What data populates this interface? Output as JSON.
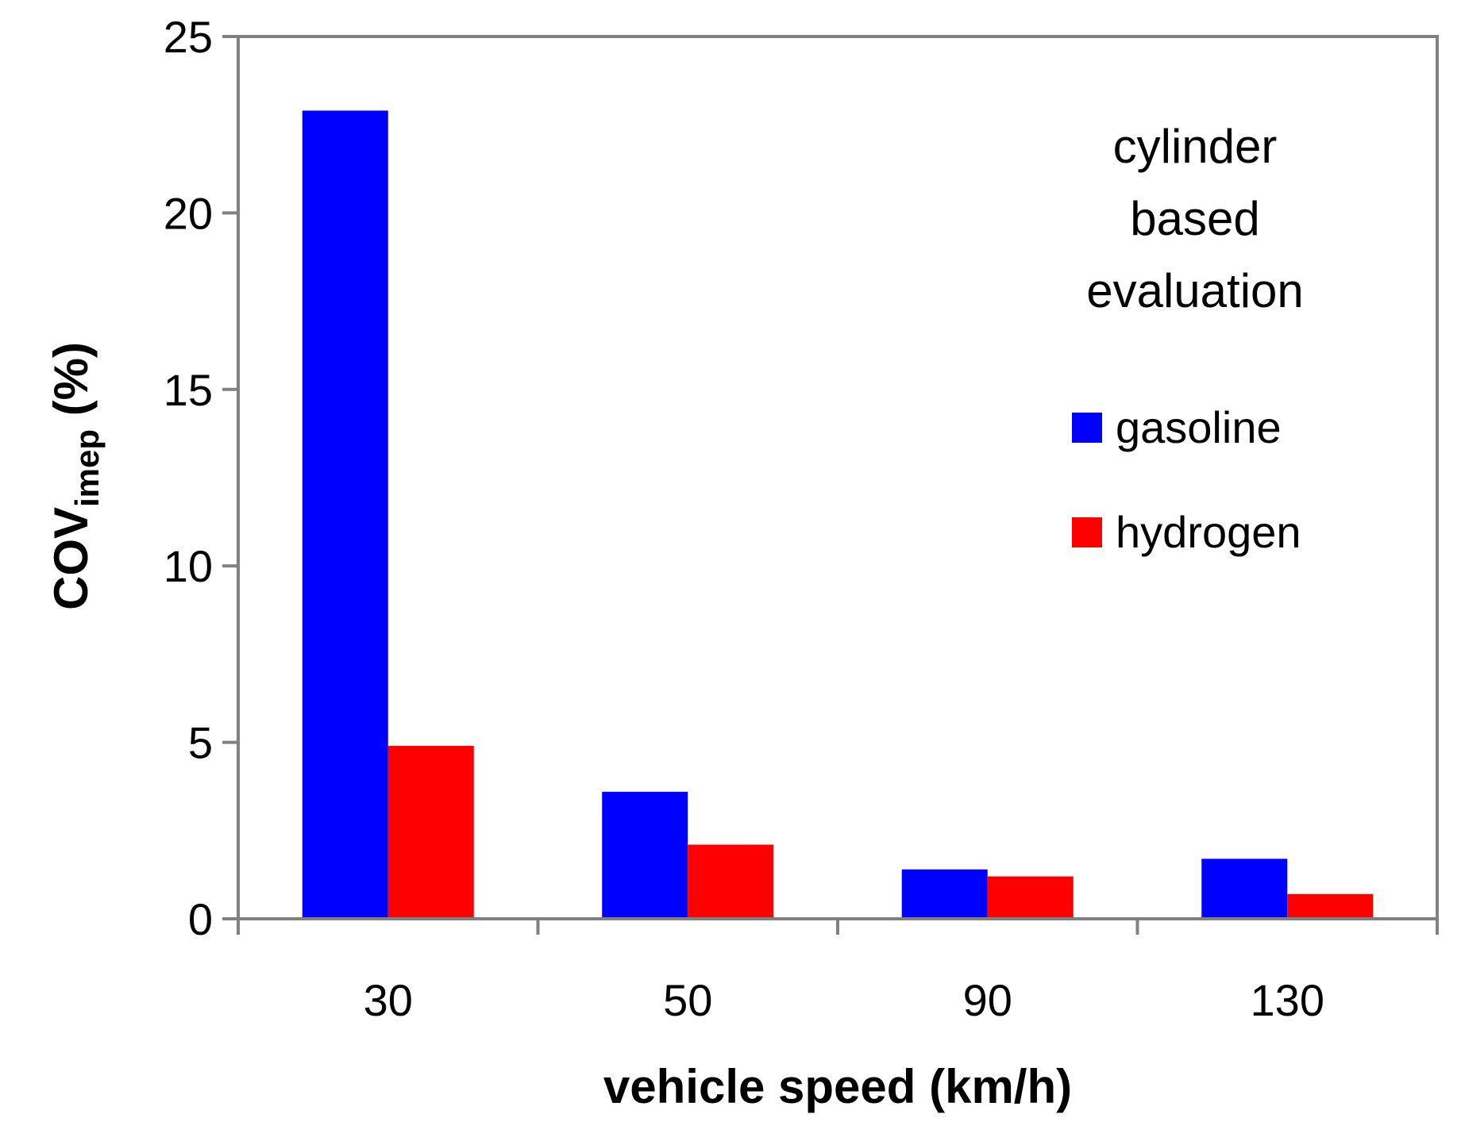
{
  "chart_data": {
    "type": "bar",
    "title": "",
    "xlabel": "vehicle speed (km/h)",
    "ylabel": {
      "main": "COV",
      "subscript": "imep",
      "suffix": " (%)"
    },
    "categories": [
      "30",
      "50",
      "90",
      "130"
    ],
    "series": [
      {
        "name": "gasoline",
        "color": "#0000ff",
        "values": [
          22.9,
          3.6,
          1.4,
          1.7
        ]
      },
      {
        "name": "hydrogen",
        "color": "#ff0000",
        "values": [
          4.9,
          2.1,
          1.2,
          0.7
        ]
      }
    ],
    "ylim": [
      0,
      25
    ],
    "yticks": [
      0,
      5,
      10,
      15,
      20,
      25
    ],
    "grid": false,
    "legend_position": "right",
    "annotation": [
      "cylinder",
      "based",
      "evaluation"
    ]
  }
}
